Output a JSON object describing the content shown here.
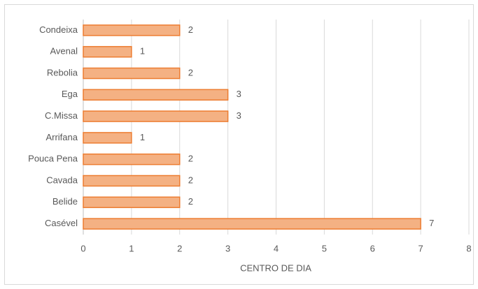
{
  "chart_data": {
    "type": "bar",
    "orientation": "horizontal",
    "x_label": "CENTRO DE DIA",
    "categories": [
      "Condeixa",
      "Avenal",
      "Rebolia",
      "Ega",
      "C.Missa",
      "Arrifana",
      "Pouca Pena",
      "Cavada",
      "Belide",
      "Casével"
    ],
    "values": [
      2,
      1,
      2,
      3,
      3,
      1,
      2,
      2,
      2,
      7
    ],
    "color": "#f4b183",
    "edge_color": "#ed7d31",
    "xlim": [
      0,
      8
    ],
    "xticks": [
      0,
      1,
      2,
      3,
      4,
      5,
      6,
      7,
      8
    ],
    "grid": true
  }
}
